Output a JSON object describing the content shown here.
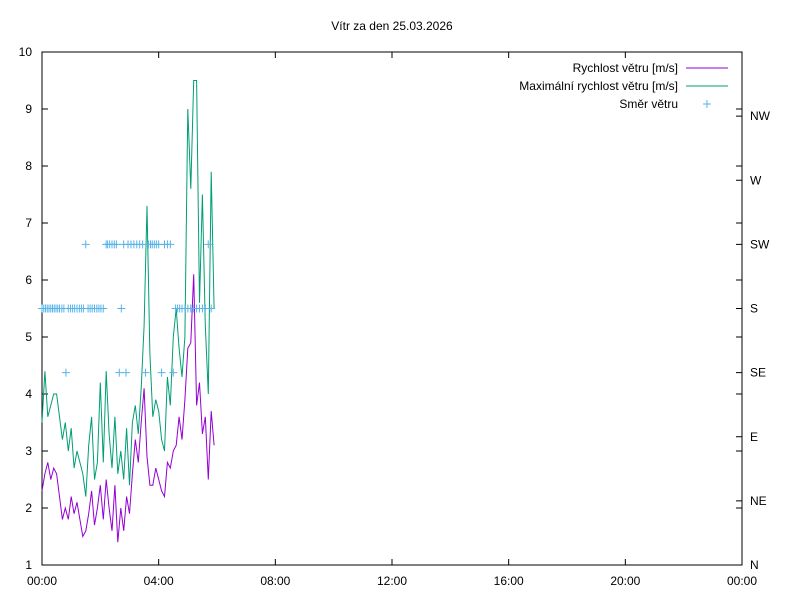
{
  "chart_data": {
    "type": "line",
    "title": "Vítr za den 25.03.2026",
    "x_ticks": [
      "00:00",
      "04:00",
      "08:00",
      "12:00",
      "16:00",
      "20:00",
      "00:00"
    ],
    "y_ticks": [
      "1",
      "2",
      "3",
      "4",
      "5",
      "6",
      "7",
      "8",
      "9",
      "10"
    ],
    "ylim": [
      1,
      10
    ],
    "y2_ticks": [
      "N",
      "NE",
      "E",
      "SE",
      "S",
      "SW",
      "W",
      "NW"
    ],
    "y2_tick_values": [
      0,
      45,
      90,
      135,
      180,
      225,
      270,
      315
    ],
    "y2lim": [
      0,
      360
    ],
    "xlim_hours": [
      0,
      24
    ],
    "grid": false,
    "legend_position": "top-right",
    "series": [
      {
        "name": "Rychlost větru [m/s]",
        "color": "#9400d3",
        "axis": "left",
        "x": [
          0.0,
          0.1,
          0.2,
          0.3,
          0.4,
          0.5,
          0.6,
          0.7,
          0.8,
          0.9,
          1.0,
          1.1,
          1.2,
          1.3,
          1.4,
          1.5,
          1.6,
          1.7,
          1.8,
          1.9,
          2.0,
          2.1,
          2.2,
          2.3,
          2.4,
          2.5,
          2.6,
          2.7,
          2.8,
          2.9,
          3.0,
          3.1,
          3.2,
          3.3,
          3.4,
          3.5,
          3.6,
          3.7,
          3.8,
          3.9,
          4.0,
          4.1,
          4.2,
          4.3,
          4.4,
          4.5,
          4.6,
          4.7,
          4.8,
          4.9,
          5.0,
          5.1,
          5.2,
          5.3,
          5.4,
          5.5,
          5.6,
          5.7,
          5.8,
          5.9
        ],
        "y": [
          2.3,
          2.6,
          2.8,
          2.5,
          2.7,
          2.6,
          2.2,
          1.8,
          2.0,
          1.8,
          2.2,
          1.9,
          2.1,
          1.8,
          1.5,
          1.6,
          1.9,
          2.3,
          1.7,
          2.0,
          2.4,
          1.8,
          2.5,
          2.0,
          1.6,
          2.4,
          1.4,
          2.0,
          1.6,
          2.2,
          1.9,
          2.6,
          3.2,
          2.8,
          3.5,
          4.1,
          2.9,
          2.4,
          2.4,
          2.7,
          2.5,
          2.3,
          2.2,
          2.8,
          2.7,
          3.0,
          3.1,
          3.6,
          3.2,
          3.9,
          4.8,
          4.9,
          6.1,
          3.8,
          4.2,
          3.3,
          3.6,
          2.5,
          3.7,
          3.1
        ]
      },
      {
        "name": "Maximální rychlost větru [m/s]",
        "color": "#009e73",
        "axis": "left",
        "x": [
          0.0,
          0.1,
          0.2,
          0.3,
          0.4,
          0.5,
          0.6,
          0.7,
          0.8,
          0.9,
          1.0,
          1.1,
          1.2,
          1.3,
          1.4,
          1.5,
          1.6,
          1.7,
          1.8,
          1.9,
          2.0,
          2.1,
          2.2,
          2.3,
          2.4,
          2.5,
          2.6,
          2.7,
          2.8,
          2.9,
          3.0,
          3.1,
          3.2,
          3.3,
          3.4,
          3.5,
          3.6,
          3.7,
          3.8,
          3.9,
          4.0,
          4.1,
          4.2,
          4.3,
          4.4,
          4.5,
          4.6,
          4.7,
          4.8,
          4.9,
          5.0,
          5.1,
          5.2,
          5.3,
          5.4,
          5.5,
          5.6,
          5.7,
          5.8,
          5.9
        ],
        "y": [
          3.5,
          4.4,
          3.6,
          3.8,
          4.0,
          4.0,
          3.6,
          3.2,
          3.5,
          3.0,
          3.4,
          2.7,
          3.0,
          2.8,
          2.6,
          2.2,
          3.1,
          3.6,
          2.5,
          2.8,
          4.2,
          2.8,
          4.4,
          3.3,
          2.7,
          3.6,
          2.6,
          3.0,
          2.5,
          3.4,
          2.4,
          3.5,
          3.8,
          3.3,
          4.1,
          5.2,
          7.3,
          4.7,
          3.6,
          3.9,
          3.7,
          3.2,
          3.0,
          4.3,
          3.8,
          5.0,
          5.5,
          4.8,
          4.3,
          5.0,
          9.0,
          7.6,
          9.5,
          9.5,
          5.6,
          7.5,
          5.2,
          4.0,
          7.9,
          5.5
        ]
      },
      {
        "name": "Směr větru",
        "color": "#56b4e9",
        "axis": "right",
        "x": [
          0.0,
          0.06,
          0.12,
          0.18,
          0.24,
          0.3,
          0.36,
          0.42,
          0.48,
          0.54,
          0.6,
          0.68,
          0.75,
          0.82,
          0.9,
          0.98,
          1.05,
          1.12,
          1.2,
          1.28,
          1.35,
          1.42,
          1.5,
          1.58,
          1.65,
          1.72,
          1.8,
          1.88,
          1.95,
          2.02,
          2.1,
          2.2,
          2.25,
          2.32,
          2.4,
          2.48,
          2.55,
          2.65,
          2.72,
          2.8,
          2.88,
          2.95,
          3.05,
          3.15,
          3.25,
          3.35,
          3.45,
          3.55,
          3.65,
          3.72,
          3.78,
          3.85,
          3.92,
          4.0,
          4.1,
          4.2,
          4.3,
          4.4,
          4.5,
          4.58,
          4.65,
          4.72,
          4.8,
          4.9,
          5.0,
          5.1,
          5.2,
          5.3,
          5.4,
          5.5,
          5.6,
          5.7,
          5.8
        ],
        "y": [
          180,
          180,
          180,
          180,
          180,
          180,
          180,
          180,
          180,
          180,
          180,
          180,
          180,
          135,
          180,
          180,
          180,
          180,
          180,
          180,
          180,
          180,
          225,
          180,
          180,
          180,
          180,
          180,
          180,
          180,
          180,
          225,
          225,
          225,
          225,
          225,
          225,
          135,
          180,
          225,
          135,
          225,
          225,
          225,
          225,
          225,
          225,
          135,
          225,
          225,
          225,
          225,
          225,
          225,
          135,
          225,
          225,
          225,
          135,
          180,
          180,
          180,
          180,
          180,
          180,
          180,
          180,
          180,
          180,
          180,
          180,
          225,
          180
        ]
      }
    ]
  }
}
